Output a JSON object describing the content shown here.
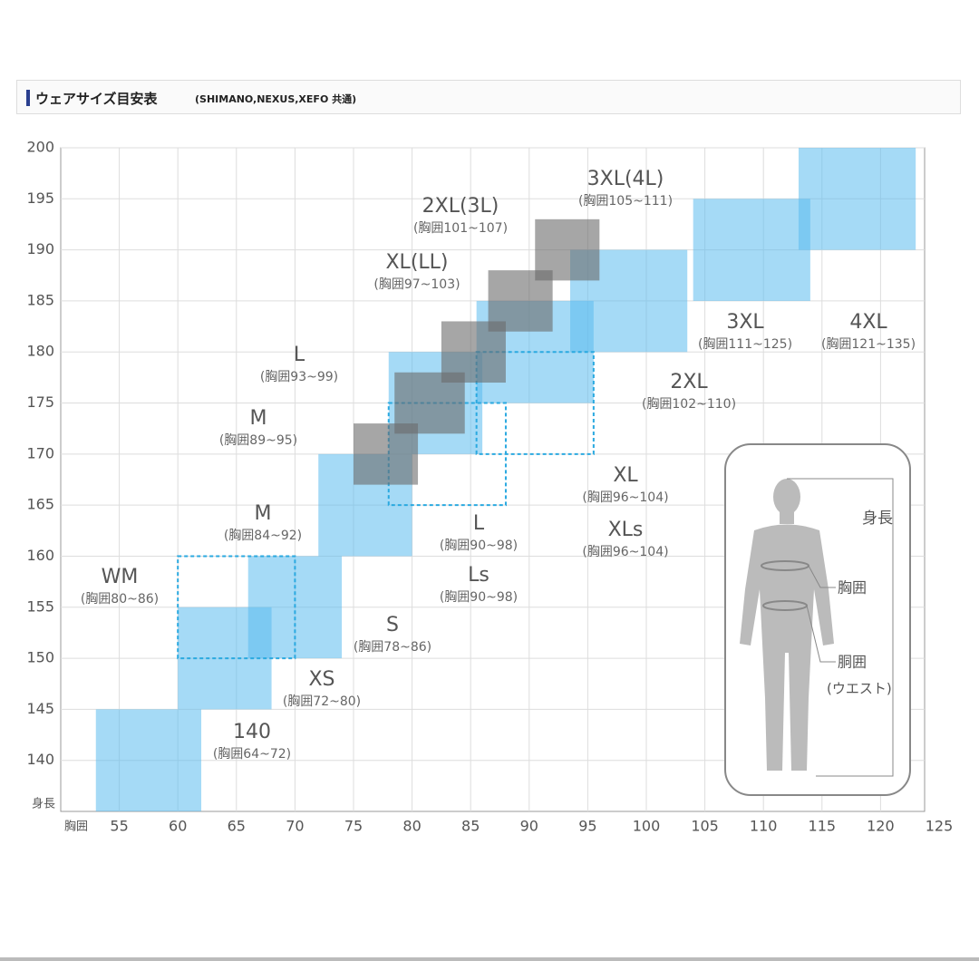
{
  "header": {
    "title": "ウェアサイズ目安表",
    "subtitle": "(SHIMANO,NEXUS,XEFO 共通)"
  },
  "chart_data": {
    "type": "range-box",
    "x_label": "胸囲",
    "y_label": "身長",
    "xlim": [
      50,
      125
    ],
    "ylim": [
      135,
      200
    ],
    "xticks": [
      55,
      60,
      65,
      70,
      75,
      80,
      85,
      90,
      95,
      100,
      105,
      110,
      115,
      120,
      125
    ],
    "yticks": [
      140,
      145,
      150,
      155,
      160,
      165,
      170,
      175,
      180,
      185,
      190,
      195,
      200
    ],
    "grid": true,
    "styles": {
      "blue": "#5bbcee",
      "gray": "#6b6b6b",
      "dashed": "#2aa9e0"
    },
    "boxes": [
      {
        "name": "140",
        "range": "(胸囲64~72)",
        "style": "blue",
        "x0": 53,
        "x1": 62,
        "y0": 135,
        "y1": 145
      },
      {
        "name": "XS",
        "range": "(胸囲72~80)",
        "style": "blue",
        "x0": 60,
        "x1": 68,
        "y0": 145,
        "y1": 155
      },
      {
        "name": "S",
        "range": "(胸囲78~86)",
        "style": "blue",
        "x0": 66,
        "x1": 74,
        "y0": 150,
        "y1": 160
      },
      {
        "name": "M",
        "range": "(胸囲84~92)",
        "style": "blue",
        "x0": 72,
        "x1": 80,
        "y0": 160,
        "y1": 170
      },
      {
        "name": "L",
        "range": "(胸囲90~98)",
        "style": "blue",
        "x0": 78,
        "x1": 86,
        "y0": 170,
        "y1": 180
      },
      {
        "name": "XL",
        "range": "(胸囲96~104)",
        "style": "blue",
        "x0": 85.5,
        "x1": 95.5,
        "y0": 175,
        "y1": 185
      },
      {
        "name": "2XL",
        "range": "(胸囲102~110)",
        "style": "blue",
        "x0": 93.5,
        "x1": 103.5,
        "y0": 180,
        "y1": 190
      },
      {
        "name": "3XL",
        "range": "(胸囲111~125)",
        "style": "blue",
        "x0": 104,
        "x1": 114,
        "y0": 185,
        "y1": 195
      },
      {
        "name": "4XL",
        "range": "(胸囲121~135)",
        "style": "blue",
        "x0": 113,
        "x1": 123,
        "y0": 190,
        "y1": 200
      },
      {
        "name": "WM",
        "range": "(胸囲80~86)",
        "style": "dashed",
        "x0": 60,
        "x1": 70,
        "y0": 150,
        "y1": 160
      },
      {
        "name": "Ls",
        "range": "(胸囲90~98)",
        "style": "dashed",
        "x0": 78,
        "x1": 88,
        "y0": 165,
        "y1": 175
      },
      {
        "name": "XLs",
        "range": "(胸囲96~104)",
        "style": "dashed",
        "x0": 85.5,
        "x1": 95.5,
        "y0": 170,
        "y1": 180
      },
      {
        "name": "M",
        "range": "(胸囲89~95)",
        "style": "gray",
        "x0": 75,
        "x1": 80.5,
        "y0": 167,
        "y1": 173
      },
      {
        "name": "L",
        "range": "(胸囲93~99)",
        "style": "gray",
        "x0": 78.5,
        "x1": 84.5,
        "y0": 172,
        "y1": 178
      },
      {
        "name": "XL(LL)",
        "range": "(胸囲97~103)",
        "style": "gray",
        "x0": 82.5,
        "x1": 88,
        "y0": 177,
        "y1": 183
      },
      {
        "name": "2XL(3L)",
        "range": "(胸囲101~107)",
        "style": "gray",
        "x0": 86.5,
        "x1": 92,
        "y0": 182,
        "y1": 188
      },
      {
        "name": "3XL(4L)",
        "range": "(胸囲105~111)",
        "style": "gray",
        "x0": 90.5,
        "x1": 96,
        "y0": 187,
        "y1": 193
      }
    ]
  },
  "figure": {
    "height": "身長",
    "chest": "胸囲",
    "waist": "胴囲",
    "waist_note": "(ウエスト)"
  }
}
